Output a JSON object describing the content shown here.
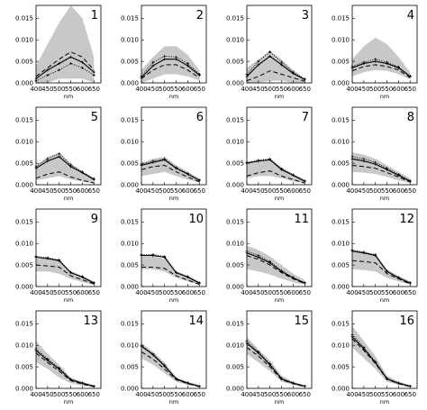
{
  "chart_data": {
    "type": "line",
    "layout": "4x4 small multiples",
    "x": [
      400,
      450,
      500,
      550,
      600,
      650
    ],
    "xticks": [
      "400",
      "450",
      "500",
      "550",
      "600",
      "650"
    ],
    "yticks": [
      "0.000",
      "0.005",
      "0.010",
      "0.015"
    ],
    "xlabel": "nm",
    "ylabel": "",
    "xlim": [
      400,
      680
    ],
    "ylim": [
      0,
      0.018
    ],
    "grid": false,
    "line_color": "#000000",
    "band_color": "#c8c8c8",
    "series_styles": [
      {
        "key": "solid",
        "style": "solid",
        "markers": true
      },
      {
        "key": "dash",
        "style": "dashed"
      },
      {
        "key": "dotted",
        "style": "dotted",
        "markers": true
      }
    ],
    "panels": [
      {
        "label": "1",
        "band_upper": [
          0.004,
          0.009,
          0.014,
          0.018,
          0.015,
          0.006
        ],
        "band_lower": [
          0.0,
          0.0,
          0.001,
          0.001,
          0.001,
          0.0
        ],
        "solid": [
          0.001,
          0.003,
          0.0045,
          0.006,
          0.0048,
          0.0025
        ],
        "dash": [
          0.0015,
          0.0035,
          0.0055,
          0.0072,
          0.006,
          0.003
        ],
        "dotted": [
          0.0005,
          0.0018,
          0.003,
          0.0045,
          0.0035,
          0.0018
        ]
      },
      {
        "label": "2",
        "band_upper": [
          0.003,
          0.006,
          0.0085,
          0.0085,
          0.0065,
          0.003
        ],
        "band_lower": [
          0.0,
          0.001,
          0.002,
          0.002,
          0.0015,
          0.0005
        ],
        "solid": [
          0.0012,
          0.004,
          0.0055,
          0.0055,
          0.004,
          0.0018
        ],
        "dash": [
          0.001,
          0.003,
          0.0042,
          0.0042,
          0.003,
          0.0012
        ],
        "dotted": [
          0.0016,
          0.0048,
          0.0062,
          0.006,
          0.0045,
          0.002
        ]
      },
      {
        "label": "3",
        "band_upper": [
          0.0035,
          0.0055,
          0.0075,
          0.0055,
          0.003,
          0.001
        ],
        "band_lower": [
          0.0,
          0.0,
          0.0005,
          0.0005,
          0.0,
          0.0
        ],
        "solid": [
          0.0015,
          0.0042,
          0.0062,
          0.0042,
          0.0022,
          0.0008
        ],
        "dash": [
          0.0005,
          0.0015,
          0.0028,
          0.002,
          0.0012,
          0.0004
        ],
        "dotted": [
          0.002,
          0.005,
          0.0072,
          0.0048,
          0.0025,
          0.0009
        ]
      },
      {
        "label": "4",
        "band_upper": [
          0.0055,
          0.0085,
          0.0105,
          0.009,
          0.006,
          0.0025
        ],
        "band_lower": [
          0.0015,
          0.0025,
          0.003,
          0.0028,
          0.002,
          0.0008
        ],
        "solid": [
          0.0035,
          0.0045,
          0.005,
          0.0045,
          0.0035,
          0.0015
        ],
        "dash": [
          0.0028,
          0.0038,
          0.0042,
          0.0038,
          0.003,
          0.0012
        ],
        "dotted": [
          0.0038,
          0.0048,
          0.0055,
          0.0048,
          0.0037,
          0.0016
        ]
      },
      {
        "label": "5",
        "band_upper": [
          0.0045,
          0.0065,
          0.0075,
          0.005,
          0.003,
          0.0015
        ],
        "band_lower": [
          0.001,
          0.0015,
          0.002,
          0.0012,
          0.0008,
          0.0003
        ],
        "solid": [
          0.0038,
          0.0055,
          0.0065,
          0.0042,
          0.0028,
          0.0012
        ],
        "dash": [
          0.0015,
          0.0025,
          0.003,
          0.0018,
          0.001,
          0.0004
        ],
        "dotted": [
          0.0042,
          0.006,
          0.0072,
          0.0046,
          0.003,
          0.0014
        ]
      },
      {
        "label": "6",
        "band_upper": [
          0.005,
          0.006,
          0.0065,
          0.0045,
          0.003,
          0.0015
        ],
        "band_lower": [
          0.002,
          0.0025,
          0.003,
          0.002,
          0.0012,
          0.0005
        ],
        "solid": [
          0.0045,
          0.0052,
          0.0058,
          0.0038,
          0.0025,
          0.001
        ],
        "dash": [
          0.0035,
          0.0042,
          0.0045,
          0.003,
          0.0018,
          0.0007
        ],
        "dotted": [
          0.0048,
          0.0055,
          0.006,
          0.004,
          0.0026,
          0.0011
        ]
      },
      {
        "label": "7",
        "band_upper": [
          0.005,
          0.0055,
          0.006,
          0.004,
          0.0025,
          0.0012
        ],
        "band_lower": [
          0.0015,
          0.002,
          0.002,
          0.0015,
          0.0008,
          0.0003
        ],
        "solid": [
          0.005,
          0.0055,
          0.0058,
          0.0035,
          0.0022,
          0.0008
        ],
        "dash": [
          0.002,
          0.0028,
          0.0032,
          0.002,
          0.0012,
          0.0004
        ],
        "dotted": [
          0.0052,
          0.0057,
          0.006,
          0.0037,
          0.0023,
          0.0009
        ]
      },
      {
        "label": "8",
        "band_upper": [
          0.0075,
          0.007,
          0.006,
          0.0045,
          0.003,
          0.0015
        ],
        "band_lower": [
          0.003,
          0.0028,
          0.0025,
          0.0018,
          0.001,
          0.0004
        ],
        "solid": [
          0.006,
          0.0055,
          0.0048,
          0.0035,
          0.0022,
          0.0008
        ],
        "dash": [
          0.0045,
          0.0042,
          0.0038,
          0.0028,
          0.0018,
          0.0006
        ],
        "dotted": [
          0.0065,
          0.006,
          0.0052,
          0.0038,
          0.0024,
          0.0009
        ]
      },
      {
        "label": "9",
        "band_upper": [
          0.0065,
          0.0065,
          0.006,
          0.0035,
          0.0025,
          0.0012
        ],
        "band_lower": [
          0.0035,
          0.0035,
          0.003,
          0.0018,
          0.001,
          0.0004
        ],
        "solid": [
          0.0068,
          0.0065,
          0.006,
          0.0032,
          0.0022,
          0.0008
        ],
        "dash": [
          0.005,
          0.0048,
          0.0045,
          0.0025,
          0.0016,
          0.0006
        ],
        "dotted": [
          0.007,
          0.0067,
          0.0062,
          0.0033,
          0.0023,
          0.0009
        ]
      },
      {
        "label": "10",
        "band_upper": [
          0.007,
          0.007,
          0.0065,
          0.0035,
          0.0025,
          0.0012
        ],
        "band_lower": [
          0.004,
          0.004,
          0.0035,
          0.002,
          0.0012,
          0.0004
        ],
        "solid": [
          0.0072,
          0.0072,
          0.0068,
          0.0032,
          0.0022,
          0.0008
        ],
        "dash": [
          0.0045,
          0.0045,
          0.0042,
          0.0025,
          0.0015,
          0.0005
        ],
        "dotted": [
          0.0074,
          0.0074,
          0.007,
          0.0033,
          0.0023,
          0.0009
        ]
      },
      {
        "label": "11",
        "band_upper": [
          0.0095,
          0.0085,
          0.007,
          0.005,
          0.003,
          0.0015
        ],
        "band_lower": [
          0.004,
          0.0035,
          0.0028,
          0.0018,
          0.001,
          0.0004
        ],
        "solid": [
          0.0078,
          0.0068,
          0.0055,
          0.0035,
          0.002,
          0.0008
        ],
        "dash": [
          0.0072,
          0.0063,
          0.005,
          0.0032,
          0.0018,
          0.0007
        ],
        "dotted": [
          0.0082,
          0.0072,
          0.0058,
          0.0037,
          0.0021,
          0.0009
        ]
      },
      {
        "label": "12",
        "band_upper": [
          0.0085,
          0.008,
          0.0075,
          0.004,
          0.0025,
          0.0012
        ],
        "band_lower": [
          0.004,
          0.0038,
          0.0035,
          0.002,
          0.0012,
          0.0004
        ],
        "solid": [
          0.0082,
          0.0078,
          0.0072,
          0.0035,
          0.002,
          0.0008
        ],
        "dash": [
          0.006,
          0.0058,
          0.0055,
          0.003,
          0.0018,
          0.0006
        ],
        "dotted": [
          0.0085,
          0.008,
          0.0074,
          0.0036,
          0.0021,
          0.0009
        ]
      },
      {
        "label": "13",
        "band_upper": [
          0.011,
          0.008,
          0.0055,
          0.0025,
          0.0015,
          0.0008
        ],
        "band_lower": [
          0.006,
          0.0045,
          0.0025,
          0.0012,
          0.0006,
          0.0002
        ],
        "solid": [
          0.0088,
          0.0065,
          0.0045,
          0.002,
          0.0012,
          0.0005
        ],
        "dash": [
          0.0082,
          0.006,
          0.004,
          0.0018,
          0.001,
          0.0004
        ],
        "dotted": [
          0.0092,
          0.0068,
          0.0047,
          0.0021,
          0.0013,
          0.0005
        ]
      },
      {
        "label": "14",
        "band_upper": [
          0.0105,
          0.0085,
          0.006,
          0.0025,
          0.0015,
          0.0008
        ],
        "band_lower": [
          0.007,
          0.0055,
          0.0035,
          0.0015,
          0.0008,
          0.0003
        ],
        "solid": [
          0.0098,
          0.0078,
          0.0052,
          0.0022,
          0.0012,
          0.0005
        ],
        "dash": [
          0.0085,
          0.0068,
          0.0045,
          0.002,
          0.0011,
          0.0004
        ],
        "dotted": [
          0.01,
          0.008,
          0.0054,
          0.0023,
          0.0013,
          0.0005
        ]
      },
      {
        "label": "15",
        "band_upper": [
          0.012,
          0.009,
          0.0065,
          0.003,
          0.0015,
          0.0008
        ],
        "band_lower": [
          0.008,
          0.006,
          0.004,
          0.0015,
          0.0008,
          0.0003
        ],
        "solid": [
          0.0105,
          0.0082,
          0.0055,
          0.0022,
          0.0012,
          0.0005
        ],
        "dash": [
          0.0095,
          0.0075,
          0.005,
          0.002,
          0.0011,
          0.0004
        ],
        "dotted": [
          0.011,
          0.0085,
          0.0057,
          0.0023,
          0.0013,
          0.0005
        ]
      },
      {
        "label": "16",
        "band_upper": [
          0.0145,
          0.011,
          0.0075,
          0.003,
          0.0015,
          0.0008
        ],
        "band_lower": [
          0.0095,
          0.007,
          0.0045,
          0.0015,
          0.0008,
          0.0003
        ],
        "solid": [
          0.012,
          0.0092,
          0.006,
          0.0022,
          0.0012,
          0.0005
        ],
        "dash": [
          0.0115,
          0.0088,
          0.0058,
          0.0021,
          0.0011,
          0.0004
        ],
        "dotted": [
          0.0125,
          0.0095,
          0.0062,
          0.0023,
          0.0013,
          0.0005
        ]
      }
    ]
  }
}
